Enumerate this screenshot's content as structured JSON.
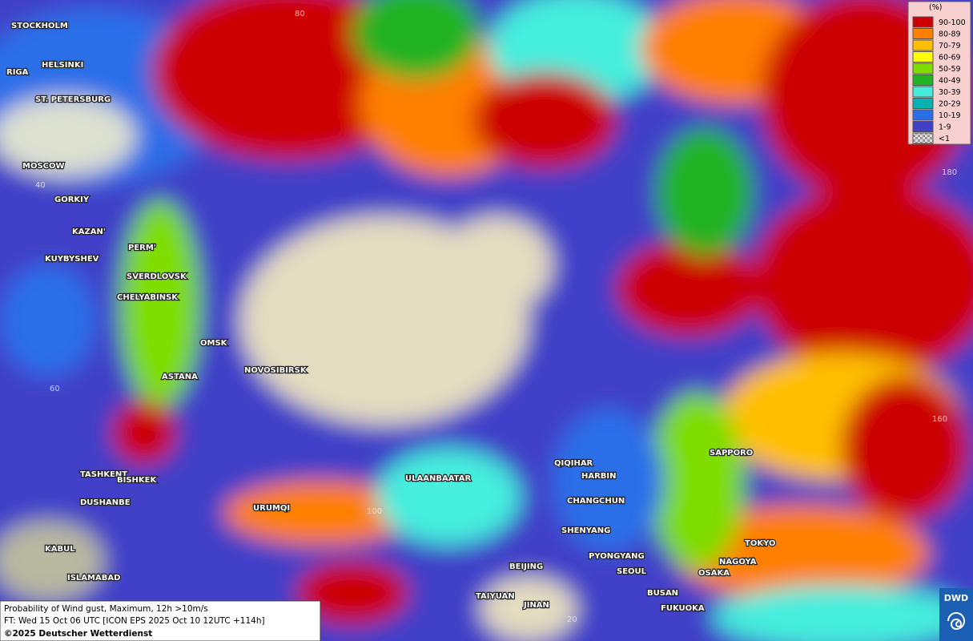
{
  "legend": {
    "title": "(%)",
    "entries": [
      {
        "label": "90-100",
        "color": "#cc0000"
      },
      {
        "label": "80-89",
        "color": "#ff7f00"
      },
      {
        "label": "70-79",
        "color": "#ffbf00"
      },
      {
        "label": "60-69",
        "color": "#ffff00"
      },
      {
        "label": "50-59",
        "color": "#7fdd00"
      },
      {
        "label": "40-49",
        "color": "#22b322"
      },
      {
        "label": "30-39",
        "color": "#44eedd"
      },
      {
        "label": "20-29",
        "color": "#00b4b4"
      },
      {
        "label": "10-19",
        "color": "#2a6ee8"
      },
      {
        "label": "1-9",
        "color": "#4040c8"
      },
      {
        "label": "<1",
        "color": "#b0b0b0"
      }
    ]
  },
  "cities": [
    "STOCKHOLM",
    "HELSINKI",
    "RIGA",
    "ST. PETERSBURG",
    "MOSCOW",
    "GORKIY",
    "KAZAN'",
    "KUYBYSHEV",
    "PERM'",
    "SVERDLOVSK",
    "CHELYABINSK",
    "OMSK",
    "ASTANA",
    "NOVOSIBIRSK",
    "TASHKENT",
    "BISHKEK",
    "DUSHANBE",
    "URUMQI",
    "ULAANBAATAR",
    "QIQIHAR",
    "HARBIN",
    "CHANGCHUN",
    "SHENYANG",
    "PYONGYANG",
    "SEOUL",
    "BEIJING",
    "BUSAN",
    "FUKUOKA",
    "TAIYUAN",
    "JINAN",
    "SAPPORO",
    "TOKYO",
    "NAGOYA",
    "OSAKA",
    "KABUL",
    "ISLAMABAD"
  ],
  "grid_labels": [
    "80",
    "40",
    "60",
    "100",
    "160",
    "180",
    "20"
  ],
  "footer": {
    "line1": "Probability of Wind gust, Maximum, 12h >10m/s",
    "line2": "FT: Wed 15 Oct 06 UTC [ICON EPS 2025 Oct 10 12UTC +114h]",
    "line3": "©2025 Deutscher Wetterdienst"
  },
  "logo": "DWD"
}
